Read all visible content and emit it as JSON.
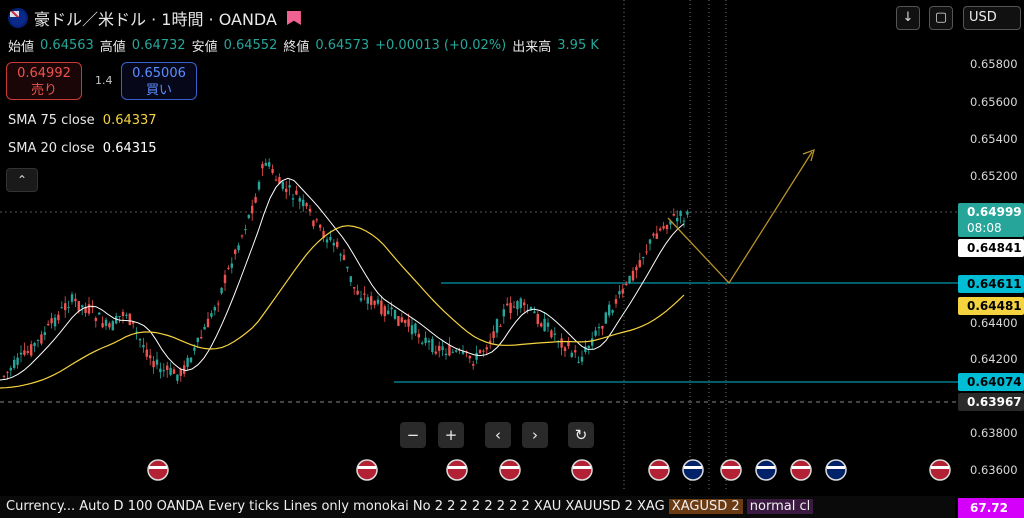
{
  "header": {
    "title": "豪ドル／米ドル · 1時間 · OANDA",
    "ohlc": [
      {
        "k": "始値",
        "v": "0.64563"
      },
      {
        "k": "高値",
        "v": "0.64732"
      },
      {
        "k": "安値",
        "v": "0.64552"
      },
      {
        "k": "終値",
        "v": "0.64573"
      }
    ],
    "change": "+0.00013 (+0.02%)",
    "volume_label": "出来高",
    "volume_value": "3.95 K"
  },
  "trade": {
    "sell_price": "0.64992",
    "sell_label": "売り",
    "spread": "1.4",
    "buy_price": "0.65006",
    "buy_label": "買い"
  },
  "indicators": [
    {
      "label": "SMA 75 close",
      "value": "0.64337",
      "color": "#f5d33f"
    },
    {
      "label": "SMA 20 close",
      "value": "0.64315",
      "color": "#ffffff"
    }
  ],
  "toolbar": {
    "currency": "USD"
  },
  "price_axis": {
    "ticks": [
      "0.65800",
      "0.65600",
      "0.65400",
      "0.65200",
      "0.64400",
      "0.64200",
      "0.63800",
      "0.63600"
    ],
    "tags": [
      {
        "text": "0.64999",
        "sub": "08:08",
        "bg": "#26a69a",
        "fg": "#ffffff"
      },
      {
        "text": "0.64841",
        "bg": "#ffffff",
        "fg": "#000000"
      },
      {
        "text": "0.64611",
        "bg": "#00bcd4",
        "fg": "#000000"
      },
      {
        "text": "0.64481",
        "bg": "#f5d33f",
        "fg": "#000000"
      },
      {
        "text": "0.64074",
        "bg": "#00bcd4",
        "fg": "#000000"
      },
      {
        "text": "0.63967",
        "bg": "#2a2a2a",
        "fg": "#ffffff"
      }
    ]
  },
  "ticker": {
    "text": "Currency... Auto D 100 OANDA Every ticks Lines only monokai No 2 2 2 2 2 2 2 2 XAU XAUUSD 2 XAG",
    "highlight": "XAGUSD 2",
    "tail": "normal cl",
    "bottom_value": "67.72"
  },
  "colors": {
    "up": "#26a69a",
    "down": "#ef5350",
    "sma20": "#ffffff",
    "sma75": "#f5d33f",
    "level": "#00bcd4",
    "arrow": "#b8922a"
  }
}
